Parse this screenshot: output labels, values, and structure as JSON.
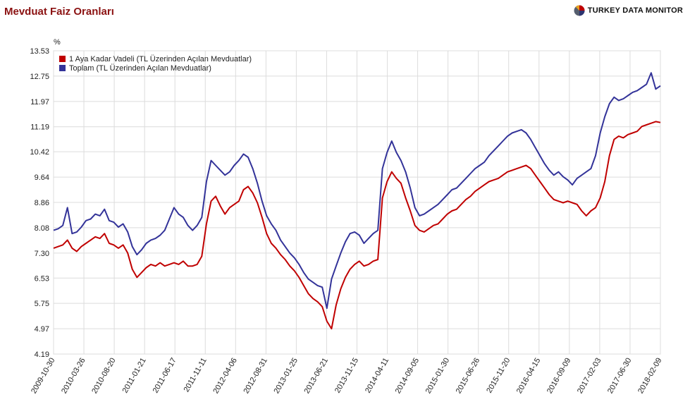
{
  "page": {
    "title": "Mevduat Faiz Oranları",
    "brand": "TURKEY DATA MONITOR",
    "logo_icon": "pie-logo-icon"
  },
  "chart_data": {
    "type": "line",
    "title": "",
    "unit_label": "%",
    "xlabel": "",
    "ylabel": "",
    "ylim": [
      4.19,
      13.53
    ],
    "y_ticks": [
      "13.53",
      "12.75",
      "11.97",
      "11.19",
      "10.42",
      "9.64",
      "8.86",
      "8.08",
      "7.30",
      "6.53",
      "5.75",
      "4.97",
      "4.19"
    ],
    "x_ticks": [
      "2009-10-30",
      "2010-03-26",
      "2010-08-20",
      "2011-01-21",
      "2011-06-17",
      "2011-11-11",
      "2012-04-06",
      "2012-08-31",
      "2013-01-25",
      "2013-06-21",
      "2013-11-15",
      "2014-04-11",
      "2014-09-05",
      "2015-01-30",
      "2015-06-26",
      "2015-11-20",
      "2016-04-15",
      "2016-09-09",
      "2017-02-03",
      "2017-06-30",
      "2018-02-09"
    ],
    "grid": true,
    "legend_position": "top-left",
    "series": [
      {
        "name": "1 Aya Kadar Vadeli (TL Üzerinden Açılan Mevduatlar)",
        "color": "#c00000",
        "values": [
          7.45,
          7.5,
          7.55,
          7.7,
          7.45,
          7.35,
          7.5,
          7.6,
          7.7,
          7.8,
          7.75,
          7.9,
          7.6,
          7.55,
          7.45,
          7.55,
          7.3,
          6.8,
          6.55,
          6.7,
          6.85,
          6.95,
          6.9,
          7.0,
          6.9,
          6.95,
          7.0,
          6.95,
          7.05,
          6.9,
          6.9,
          6.95,
          7.2,
          8.2,
          8.9,
          9.05,
          8.75,
          8.5,
          8.7,
          8.8,
          8.9,
          9.25,
          9.35,
          9.15,
          8.85,
          8.4,
          7.9,
          7.6,
          7.45,
          7.25,
          7.1,
          6.9,
          6.75,
          6.55,
          6.3,
          6.05,
          5.9,
          5.8,
          5.65,
          5.2,
          4.97,
          5.7,
          6.2,
          6.55,
          6.8,
          6.95,
          7.05,
          6.9,
          6.95,
          7.05,
          7.1,
          9.0,
          9.5,
          9.8,
          9.6,
          9.45,
          9.0,
          8.6,
          8.15,
          8.0,
          7.95,
          8.05,
          8.15,
          8.2,
          8.35,
          8.5,
          8.6,
          8.65,
          8.8,
          8.95,
          9.05,
          9.2,
          9.3,
          9.4,
          9.5,
          9.55,
          9.6,
          9.7,
          9.8,
          9.85,
          9.9,
          9.95,
          10.0,
          9.9,
          9.7,
          9.5,
          9.3,
          9.1,
          8.95,
          8.9,
          8.85,
          8.9,
          8.85,
          8.8,
          8.6,
          8.45,
          8.6,
          8.7,
          9.0,
          9.5,
          10.3,
          10.8,
          10.9,
          10.85,
          10.95,
          11.0,
          11.05,
          11.2,
          11.25,
          11.3,
          11.35,
          11.32
        ]
      },
      {
        "name": "Toplam (TL Üzerinden Açılan Mevduatlar)",
        "color": "#333399",
        "values": [
          8.0,
          8.05,
          8.15,
          8.7,
          7.9,
          7.95,
          8.1,
          8.3,
          8.35,
          8.5,
          8.45,
          8.65,
          8.3,
          8.25,
          8.1,
          8.2,
          7.95,
          7.5,
          7.25,
          7.4,
          7.6,
          7.7,
          7.75,
          7.85,
          8.0,
          8.35,
          8.7,
          8.5,
          8.4,
          8.15,
          8.0,
          8.15,
          8.4,
          9.5,
          10.15,
          10.0,
          9.85,
          9.7,
          9.8,
          10.0,
          10.15,
          10.35,
          10.25,
          9.9,
          9.45,
          8.9,
          8.45,
          8.2,
          8.0,
          7.7,
          7.5,
          7.3,
          7.15,
          6.95,
          6.7,
          6.5,
          6.4,
          6.3,
          6.25,
          5.6,
          6.5,
          6.9,
          7.3,
          7.65,
          7.9,
          7.95,
          7.85,
          7.6,
          7.75,
          7.9,
          8.0,
          9.9,
          10.4,
          10.75,
          10.4,
          10.15,
          9.8,
          9.3,
          8.7,
          8.45,
          8.5,
          8.6,
          8.7,
          8.8,
          8.95,
          9.1,
          9.25,
          9.3,
          9.45,
          9.6,
          9.75,
          9.9,
          10.0,
          10.1,
          10.3,
          10.45,
          10.6,
          10.75,
          10.9,
          11.0,
          11.05,
          11.1,
          11.0,
          10.8,
          10.55,
          10.3,
          10.05,
          9.85,
          9.7,
          9.8,
          9.65,
          9.55,
          9.4,
          9.6,
          9.7,
          9.8,
          9.9,
          10.3,
          11.0,
          11.5,
          11.9,
          12.1,
          12.0,
          12.05,
          12.15,
          12.25,
          12.3,
          12.4,
          12.5,
          12.85,
          12.35,
          12.45
        ]
      }
    ]
  }
}
